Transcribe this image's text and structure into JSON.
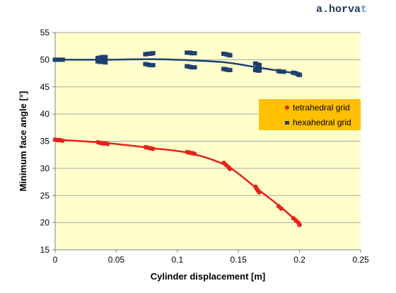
{
  "watermark": {
    "prefix": "a.horva",
    "accent": "t"
  },
  "colors": {
    "plot_bg": "#ffffcc",
    "grid": "#a6a6a6",
    "legend_bg": "#ffc000",
    "tetra": "#e8221a",
    "hexa": "#1f3f6e"
  },
  "chart_data": {
    "type": "scatter",
    "title": "",
    "xlabel": "Cylinder displacement [m]",
    "ylabel": "Minimum face angle [°]",
    "xlim": [
      0,
      0.25
    ],
    "ylim": [
      15,
      55
    ],
    "xticks": [
      0,
      0.05,
      0.1,
      0.15,
      0.2,
      0.25
    ],
    "xtick_labels": [
      "0",
      "0.05",
      "0.1",
      "0.15",
      "0.2",
      "0.25"
    ],
    "yticks": [
      15,
      20,
      25,
      30,
      35,
      40,
      45,
      50,
      55
    ],
    "ytick_labels": [
      "15",
      "20",
      "25",
      "30",
      "35",
      "40",
      "45",
      "50",
      "55"
    ],
    "grid": "horizontal",
    "legend_position": "right",
    "series": [
      {
        "name": "tetrahedral grid",
        "marker": "circle",
        "points": [
          [
            0.0,
            35.3
          ],
          [
            0.002,
            35.2
          ],
          [
            0.004,
            35.2
          ],
          [
            0.006,
            35.1
          ],
          [
            0.035,
            34.8
          ],
          [
            0.037,
            34.7
          ],
          [
            0.039,
            34.6
          ],
          [
            0.041,
            34.6
          ],
          [
            0.043,
            34.5
          ],
          [
            0.074,
            33.9
          ],
          [
            0.076,
            33.8
          ],
          [
            0.078,
            33.7
          ],
          [
            0.08,
            33.6
          ],
          [
            0.108,
            33.0
          ],
          [
            0.11,
            32.9
          ],
          [
            0.112,
            32.8
          ],
          [
            0.114,
            32.7
          ],
          [
            0.138,
            31.0
          ],
          [
            0.14,
            30.6
          ],
          [
            0.142,
            30.2
          ],
          [
            0.143,
            29.9
          ],
          [
            0.164,
            26.6
          ],
          [
            0.165,
            26.2
          ],
          [
            0.166,
            25.9
          ],
          [
            0.167,
            25.6
          ],
          [
            0.183,
            23.0
          ],
          [
            0.185,
            22.6
          ],
          [
            0.195,
            20.8
          ],
          [
            0.197,
            20.4
          ],
          [
            0.199,
            20.0
          ],
          [
            0.2,
            19.6
          ]
        ],
        "trend": [
          [
            0,
            35.3
          ],
          [
            0.04,
            34.7
          ],
          [
            0.08,
            33.7
          ],
          [
            0.11,
            32.8
          ],
          [
            0.14,
            30.5
          ],
          [
            0.165,
            26.3
          ],
          [
            0.185,
            22.8
          ],
          [
            0.2,
            19.8
          ]
        ]
      },
      {
        "name": "hexahedral grid",
        "marker": "square",
        "points": [
          [
            0.0,
            50.0
          ],
          [
            0.002,
            50.0
          ],
          [
            0.004,
            50.0
          ],
          [
            0.006,
            50.0
          ],
          [
            0.035,
            50.3
          ],
          [
            0.037,
            50.4
          ],
          [
            0.039,
            50.5
          ],
          [
            0.041,
            50.5
          ],
          [
            0.035,
            49.7
          ],
          [
            0.037,
            49.6
          ],
          [
            0.039,
            49.6
          ],
          [
            0.041,
            49.5
          ],
          [
            0.074,
            51.0
          ],
          [
            0.076,
            51.1
          ],
          [
            0.078,
            51.1
          ],
          [
            0.08,
            51.2
          ],
          [
            0.074,
            49.2
          ],
          [
            0.076,
            49.1
          ],
          [
            0.078,
            49.0
          ],
          [
            0.08,
            49.0
          ],
          [
            0.108,
            51.3
          ],
          [
            0.11,
            51.3
          ],
          [
            0.112,
            51.2
          ],
          [
            0.114,
            51.2
          ],
          [
            0.108,
            48.8
          ],
          [
            0.11,
            48.7
          ],
          [
            0.112,
            48.6
          ],
          [
            0.114,
            48.6
          ],
          [
            0.138,
            51.1
          ],
          [
            0.14,
            51.0
          ],
          [
            0.142,
            50.9
          ],
          [
            0.143,
            50.8
          ],
          [
            0.138,
            48.3
          ],
          [
            0.14,
            48.2
          ],
          [
            0.142,
            48.1
          ],
          [
            0.143,
            48.1
          ],
          [
            0.164,
            49.3
          ],
          [
            0.166,
            49.1
          ],
          [
            0.167,
            49.0
          ],
          [
            0.164,
            48.1
          ],
          [
            0.166,
            48.0
          ],
          [
            0.167,
            48.0
          ],
          [
            0.183,
            47.9
          ],
          [
            0.185,
            47.8
          ],
          [
            0.187,
            47.8
          ],
          [
            0.195,
            47.6
          ],
          [
            0.197,
            47.5
          ],
          [
            0.199,
            47.3
          ],
          [
            0.2,
            47.2
          ]
        ],
        "trend": [
          [
            0,
            50.0
          ],
          [
            0.04,
            50.0
          ],
          [
            0.08,
            50.1
          ],
          [
            0.11,
            49.9
          ],
          [
            0.14,
            49.5
          ],
          [
            0.165,
            48.6
          ],
          [
            0.185,
            47.9
          ],
          [
            0.2,
            47.4
          ]
        ]
      }
    ]
  }
}
